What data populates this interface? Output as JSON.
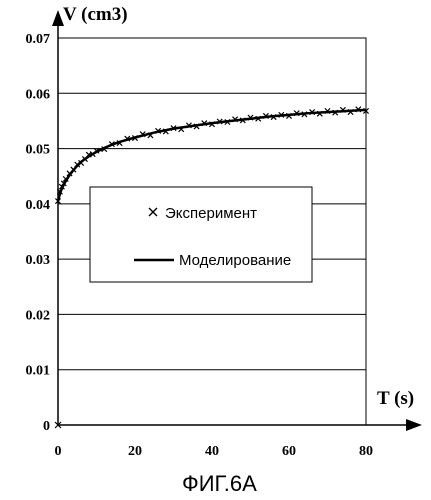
{
  "chart_data": {
    "type": "scatter",
    "ylabel": "V (cm3)",
    "xlabel": "T (s)",
    "xlim": [
      0,
      80
    ],
    "ylim": [
      0,
      0.07
    ],
    "x_ticks": [
      "0",
      "20",
      "40",
      "60",
      "80"
    ],
    "y_ticks": [
      "0",
      "0.01",
      "0.02",
      "0.03",
      "0.04",
      "0.05",
      "0.06",
      "0.07"
    ],
    "grid": "horizontal",
    "legend": {
      "position": "center-left",
      "entries": [
        {
          "label": "Эксперимент",
          "marker": "x"
        },
        {
          "label": "Моделирование",
          "marker": "line"
        }
      ]
    },
    "series": [
      {
        "name": "Моделирование",
        "style": "line",
        "x": [
          0,
          0.5,
          1,
          2,
          3,
          4,
          5,
          6,
          8,
          10,
          12,
          14,
          16,
          18,
          20,
          25,
          30,
          35,
          40,
          45,
          50,
          55,
          60,
          65,
          70,
          75,
          80
        ],
        "y": [
          0.0405,
          0.0418,
          0.0428,
          0.0441,
          0.0452,
          0.0461,
          0.0469,
          0.0476,
          0.0486,
          0.0494,
          0.0501,
          0.0507,
          0.0512,
          0.0516,
          0.052,
          0.0529,
          0.0536,
          0.0541,
          0.0546,
          0.055,
          0.0554,
          0.0558,
          0.0561,
          0.0564,
          0.0566,
          0.0568,
          0.057
        ]
      },
      {
        "name": "Эксперимент",
        "style": "x-markers",
        "x": [
          0,
          0.5,
          1,
          1.5,
          2,
          3,
          4,
          5,
          6,
          7,
          8,
          9,
          10,
          12,
          14,
          16,
          18,
          20,
          22,
          24,
          26,
          28,
          30,
          32,
          34,
          36,
          38,
          40,
          42,
          44,
          46,
          48,
          50,
          52,
          54,
          56,
          58,
          60,
          62,
          64,
          66,
          68,
          70,
          72,
          74,
          76,
          78,
          80
        ],
        "y": [
          0.0405,
          0.0422,
          0.0431,
          0.0437,
          0.0445,
          0.0455,
          0.0462,
          0.0471,
          0.0474,
          0.0481,
          0.0489,
          0.049,
          0.0496,
          0.0499,
          0.0508,
          0.051,
          0.0518,
          0.0519,
          0.0526,
          0.0524,
          0.0532,
          0.0531,
          0.0537,
          0.0535,
          0.0542,
          0.054,
          0.0546,
          0.0544,
          0.0549,
          0.0548,
          0.0553,
          0.0551,
          0.0556,
          0.0554,
          0.0559,
          0.0557,
          0.0561,
          0.0559,
          0.0564,
          0.0562,
          0.0566,
          0.0563,
          0.0568,
          0.0565,
          0.057,
          0.0566,
          0.0571,
          0.0568
        ]
      }
    ]
  },
  "figure_caption": "ФИГ.6А"
}
